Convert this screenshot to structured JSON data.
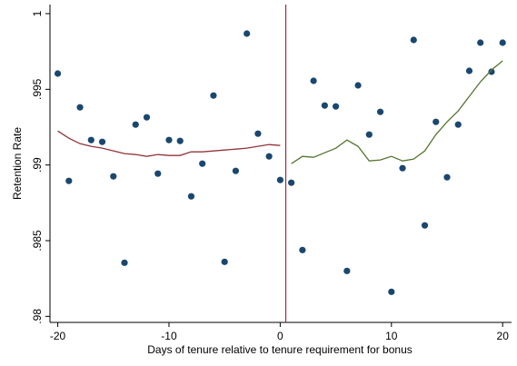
{
  "chart_data": {
    "type": "scatter",
    "x_label": "Days of tenure relative to tenure requirement for bonus",
    "y_label": "Retention Rate",
    "x": [
      -20,
      -19,
      -18,
      -17,
      -16,
      -15,
      -14,
      -13,
      -12,
      -11,
      -10,
      -9,
      -8,
      -7,
      -6,
      -5,
      -4,
      -3,
      -2,
      -1,
      0,
      1,
      2,
      3,
      4,
      5,
      6,
      7,
      8,
      9,
      10,
      11,
      12,
      13,
      14,
      15,
      16,
      17,
      18,
      19,
      20
    ],
    "series": [
      {
        "kind": "points",
        "color": "#1a476f",
        "values": [
          0.99604,
          0.98895,
          0.99381,
          0.99165,
          0.99153,
          0.98925,
          0.98354,
          0.99267,
          0.99315,
          0.98943,
          0.99165,
          0.99159,
          0.98793,
          0.99009,
          0.99459,
          0.9836,
          0.98961,
          0.99868,
          0.99207,
          0.99057,
          0.98901,
          0.98883,
          0.98438,
          0.99556,
          0.99393,
          0.99387,
          0.983,
          0.99526,
          0.99201,
          0.99351,
          0.98162,
          0.98979,
          0.99826,
          0.98601,
          0.99285,
          0.98919,
          0.99267,
          0.99622,
          0.99808,
          0.99616,
          0.99808
        ]
      },
      {
        "kind": "line",
        "color": "#90353b",
        "values": [
          0.99225,
          0.99177,
          0.99141,
          0.99123,
          0.99111,
          0.99093,
          0.99075,
          0.99069,
          0.99057,
          0.99069,
          0.99063,
          0.99063,
          0.99087,
          0.99087,
          0.99093,
          0.99099,
          0.99105,
          0.99111,
          0.99123,
          0.99135,
          0.99129,
          null,
          null,
          null,
          null,
          null,
          null,
          null,
          null,
          null,
          null,
          null,
          null,
          null,
          null,
          null,
          null,
          null,
          null,
          null,
          null
        ]
      },
      {
        "kind": "line",
        "color": "#55752f",
        "values": [
          null,
          null,
          null,
          null,
          null,
          null,
          null,
          null,
          null,
          null,
          null,
          null,
          null,
          null,
          null,
          null,
          null,
          null,
          null,
          null,
          null,
          0.99009,
          0.99057,
          0.99051,
          0.99081,
          0.99111,
          0.99165,
          0.99123,
          0.99027,
          0.99033,
          0.99057,
          0.99027,
          0.99039,
          0.99093,
          0.99201,
          0.99285,
          0.99357,
          0.99453,
          0.99549,
          0.99628,
          0.99688
        ]
      }
    ],
    "vline": 0.5,
    "vline_color": "#a0283c",
    "xlim": [
      -20.7,
      20.8
    ],
    "ylim": [
      0.9796,
      1.0006
    ],
    "xticks": [
      -20,
      -10,
      0,
      10,
      20
    ],
    "yticks": [
      {
        "value": 0.98,
        "label": ".98"
      },
      {
        "value": 0.985,
        "label": ".985"
      },
      {
        "value": 0.99,
        "label": ".99"
      },
      {
        "value": 0.995,
        "label": ".995"
      },
      {
        "value": 1,
        "label": "1"
      }
    ]
  }
}
